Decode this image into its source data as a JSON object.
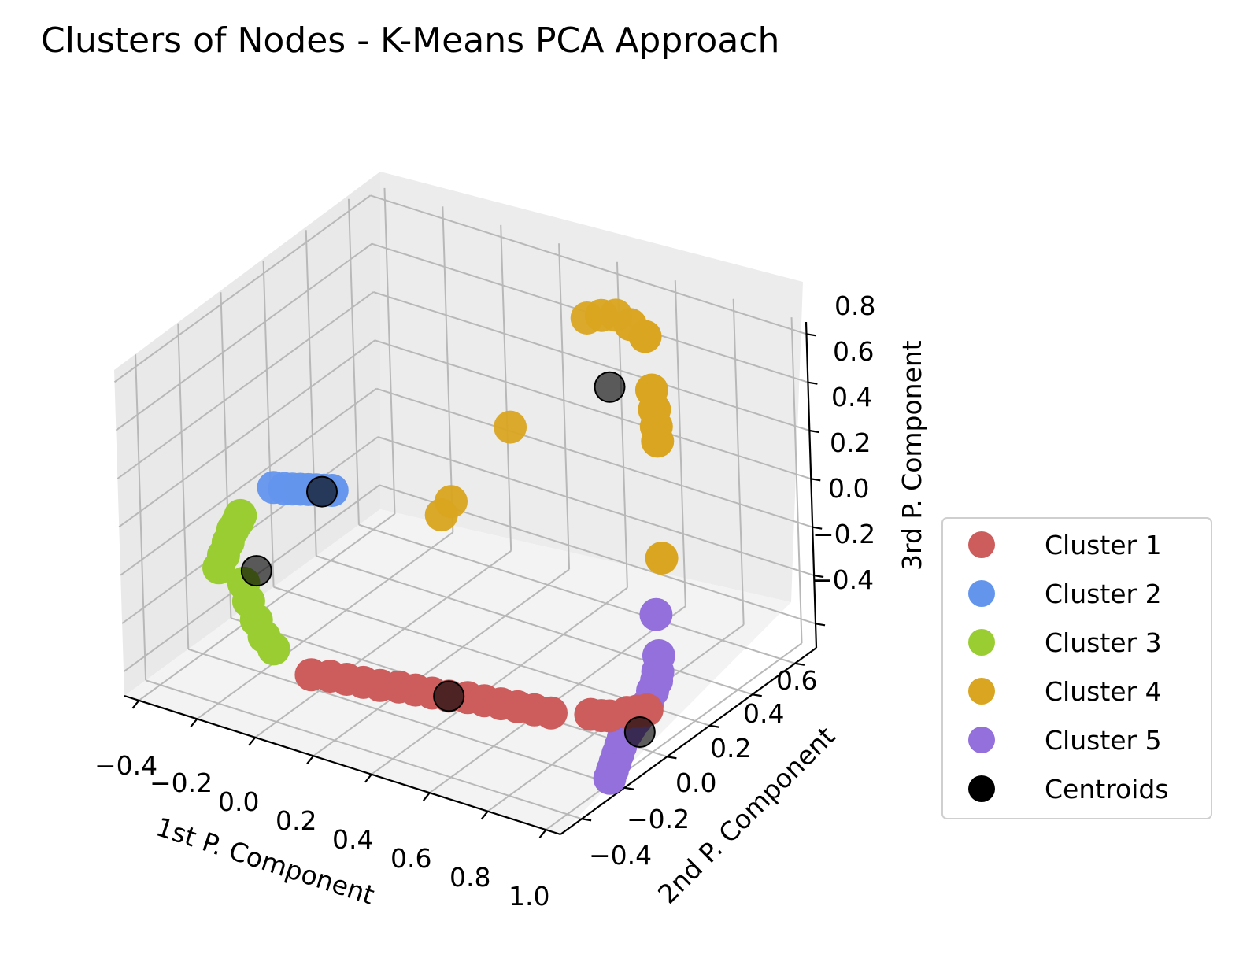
{
  "chart_data": {
    "type": "scatter",
    "title": "Clusters of Nodes - K-Means PCA Approach",
    "xlabel": "1st P. Component",
    "ylabel": "2nd P. Component",
    "zlabel": "3rd P. Component",
    "x_ticks": [
      "−0.4",
      "−0.2",
      "0.0",
      "0.2",
      "0.4",
      "0.6",
      "0.8",
      "1.0"
    ],
    "y_ticks": [
      "−0.4",
      "−0.2",
      "0.0",
      "0.2",
      "0.4",
      "0.6"
    ],
    "z_ticks": [
      "−0.4",
      "−0.2",
      "0.0",
      "0.2",
      "0.4",
      "0.6",
      "0.8"
    ],
    "xlim": [
      -0.45,
      1.05
    ],
    "ylim": [
      -0.5,
      0.7
    ],
    "zlim": [
      -0.5,
      0.85
    ],
    "grid": true,
    "legend_position": "right",
    "series": [
      {
        "name": "Cluster 1",
        "color": "#cd5c5c",
        "points": [
          [
            0.05,
            -0.3,
            -0.35
          ],
          [
            0.1,
            -0.28,
            -0.35
          ],
          [
            0.15,
            -0.27,
            -0.35
          ],
          [
            0.2,
            -0.26,
            -0.35
          ],
          [
            0.25,
            -0.25,
            -0.35
          ],
          [
            0.3,
            -0.23,
            -0.35
          ],
          [
            0.35,
            -0.22,
            -0.35
          ],
          [
            0.4,
            -0.21,
            -0.35
          ],
          [
            0.45,
            -0.2,
            -0.35
          ],
          [
            0.5,
            -0.18,
            -0.35
          ],
          [
            0.55,
            -0.17,
            -0.35
          ],
          [
            0.6,
            -0.16,
            -0.35
          ],
          [
            0.65,
            -0.15,
            -0.35
          ],
          [
            0.7,
            -0.14,
            -0.35
          ],
          [
            0.75,
            -0.13,
            -0.35
          ],
          [
            0.85,
            -0.08,
            -0.35
          ],
          [
            0.88,
            -0.07,
            -0.35
          ],
          [
            0.9,
            -0.06,
            -0.35
          ],
          [
            0.93,
            -0.02,
            -0.35
          ],
          [
            0.95,
            0.0,
            -0.35
          ],
          [
            0.97,
            0.02,
            -0.35
          ]
        ]
      },
      {
        "name": "Cluster 2",
        "color": "#6495ed",
        "points": [
          [
            -0.25,
            -0.05,
            0.15
          ],
          [
            -0.22,
            -0.04,
            0.15
          ],
          [
            -0.2,
            -0.03,
            0.15
          ],
          [
            -0.18,
            -0.02,
            0.15
          ],
          [
            -0.16,
            -0.01,
            0.15
          ],
          [
            -0.14,
            0.0,
            0.15
          ],
          [
            -0.12,
            0.01,
            0.15
          ],
          [
            -0.1,
            0.02,
            0.15
          ]
        ]
      },
      {
        "name": "Cluster 3",
        "color": "#9acd32",
        "points": [
          [
            -0.32,
            -0.22,
            -0.1
          ],
          [
            -0.31,
            -0.21,
            -0.05
          ],
          [
            -0.3,
            -0.2,
            0.0
          ],
          [
            -0.29,
            -0.19,
            0.05
          ],
          [
            -0.28,
            -0.18,
            0.08
          ],
          [
            -0.27,
            -0.18,
            0.11
          ],
          [
            -0.25,
            -0.2,
            -0.15
          ],
          [
            -0.22,
            -0.22,
            -0.2
          ],
          [
            -0.18,
            -0.24,
            -0.25
          ],
          [
            -0.14,
            -0.26,
            -0.29
          ],
          [
            -0.1,
            -0.27,
            -0.32
          ]
        ]
      },
      {
        "name": "Cluster 4",
        "color": "#daa520",
        "points": [
          [
            0.35,
            0.62,
            0.65
          ],
          [
            0.4,
            0.62,
            0.68
          ],
          [
            0.45,
            0.62,
            0.7
          ],
          [
            0.5,
            0.62,
            0.68
          ],
          [
            0.55,
            0.62,
            0.65
          ],
          [
            0.62,
            0.55,
            0.5
          ],
          [
            0.65,
            0.52,
            0.45
          ],
          [
            0.67,
            0.5,
            0.4
          ],
          [
            0.68,
            0.49,
            0.35
          ],
          [
            0.2,
            0.45,
            0.25
          ],
          [
            0.1,
            0.3,
            0.0
          ],
          [
            0.08,
            0.28,
            -0.05
          ],
          [
            0.75,
            0.4,
            -0.05
          ]
        ]
      },
      {
        "name": "Cluster 5",
        "color": "#9370db",
        "points": [
          [
            0.8,
            0.3,
            -0.2
          ],
          [
            0.82,
            0.28,
            -0.35
          ],
          [
            0.83,
            0.26,
            -0.4
          ],
          [
            0.84,
            0.24,
            -0.42
          ],
          [
            0.84,
            0.22,
            -0.45
          ],
          [
            0.85,
            0.18,
            -0.48
          ],
          [
            0.86,
            0.14,
            -0.48
          ],
          [
            0.87,
            0.1,
            -0.48
          ],
          [
            0.88,
            0.06,
            -0.48
          ],
          [
            0.89,
            0.03,
            -0.48
          ],
          [
            0.9,
            0.0,
            -0.48
          ],
          [
            0.92,
            -0.04,
            -0.48
          ],
          [
            0.94,
            -0.08,
            -0.48
          ],
          [
            0.96,
            -0.12,
            -0.48
          ],
          [
            0.98,
            -0.16,
            -0.48
          ],
          [
            1.0,
            -0.2,
            -0.48
          ]
        ]
      },
      {
        "name": "Centroids",
        "color": "#000000",
        "points": [
          [
            0.55,
            0.45,
            0.55
          ],
          [
            -0.12,
            0.0,
            0.15
          ],
          [
            -0.22,
            -0.18,
            -0.1
          ],
          [
            0.45,
            -0.2,
            -0.35
          ],
          [
            0.92,
            0.05,
            -0.48
          ]
        ]
      }
    ]
  }
}
